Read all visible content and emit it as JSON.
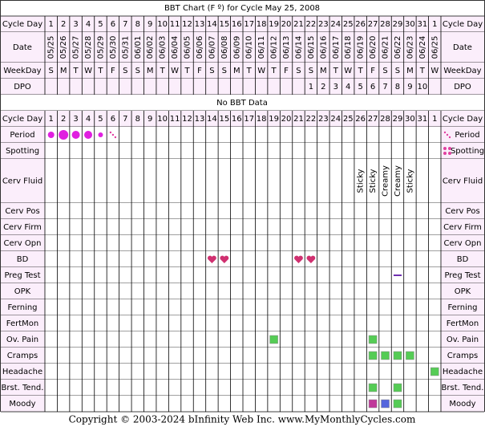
{
  "title": "BBT Chart (F º) for Cycle May 25, 2008",
  "top_rows": [
    {
      "label": "Cycle Day",
      "cells": [
        "1",
        "2",
        "3",
        "4",
        "5",
        "6",
        "7",
        "8",
        "9",
        "10",
        "11",
        "12",
        "13",
        "14",
        "15",
        "16",
        "17",
        "18",
        "19",
        "20",
        "21",
        "22",
        "23",
        "24",
        "25",
        "26",
        "27",
        "28",
        "29",
        "30",
        "31",
        "1"
      ]
    },
    {
      "label": "Date",
      "cells": [
        "05/25",
        "05/26",
        "05/27",
        "05/28",
        "05/29",
        "05/30",
        "05/31",
        "06/01",
        "06/02",
        "06/03",
        "06/04",
        "06/05",
        "06/06",
        "06/07",
        "06/08",
        "06/09",
        "06/10",
        "06/11",
        "06/12",
        "06/13",
        "06/14",
        "06/15",
        "06/16",
        "06/17",
        "06/18",
        "06/19",
        "06/20",
        "06/21",
        "06/22",
        "06/23",
        "06/24",
        "06/25"
      ]
    },
    {
      "label": "WeekDay",
      "cells": [
        "S",
        "M",
        "T",
        "W",
        "T",
        "F",
        "S",
        "S",
        "M",
        "T",
        "W",
        "T",
        "F",
        "S",
        "S",
        "M",
        "T",
        "W",
        "T",
        "F",
        "S",
        "S",
        "M",
        "T",
        "W",
        "T",
        "F",
        "S",
        "S",
        "M",
        "T",
        "W"
      ]
    },
    {
      "label": "DPO",
      "cells": [
        null,
        null,
        null,
        null,
        null,
        null,
        null,
        null,
        null,
        null,
        null,
        null,
        null,
        null,
        null,
        null,
        null,
        null,
        null,
        null,
        null,
        "1",
        "2",
        "3",
        "4",
        "5",
        "6",
        "7",
        "8",
        "9",
        "10",
        null
      ]
    }
  ],
  "no_bbt": "No BBT Data",
  "bottom_rows": [
    {
      "label": "Cycle Day",
      "cells": [
        "1",
        "2",
        "3",
        "4",
        "5",
        "6",
        "7",
        "8",
        "9",
        "10",
        "11",
        "12",
        "13",
        "14",
        "15",
        "16",
        "17",
        "18",
        "19",
        "20",
        "21",
        "22",
        "23",
        "24",
        "25",
        "26",
        "27",
        "28",
        "29",
        "30",
        "31",
        "1"
      ]
    },
    {
      "label": "Period"
    },
    {
      "label": "Spotting"
    },
    {
      "label": "Cerv Fluid",
      "cells": [
        null,
        null,
        null,
        null,
        null,
        null,
        null,
        null,
        null,
        null,
        null,
        null,
        null,
        null,
        null,
        null,
        null,
        null,
        null,
        null,
        null,
        null,
        null,
        null,
        null,
        "Sticky",
        "Sticky",
        "Creamy",
        "Creamy",
        "Sticky",
        null,
        null
      ]
    },
    {
      "label": "Cerv Pos"
    },
    {
      "label": "Cerv Firm"
    },
    {
      "label": "Cerv Opn"
    },
    {
      "label": "BD"
    },
    {
      "label": "Preg Test"
    },
    {
      "label": "OPK"
    },
    {
      "label": "Ferning"
    },
    {
      "label": "FertMon"
    },
    {
      "label": "Ov. Pain"
    },
    {
      "label": "Cramps"
    },
    {
      "label": "Headache"
    },
    {
      "label": "Brst. Tend."
    },
    {
      "label": "Moody"
    }
  ],
  "footer": "Copyright © 2003-2024 bInfinity Web Inc.     www.MyMonthlyCycles.com"
}
